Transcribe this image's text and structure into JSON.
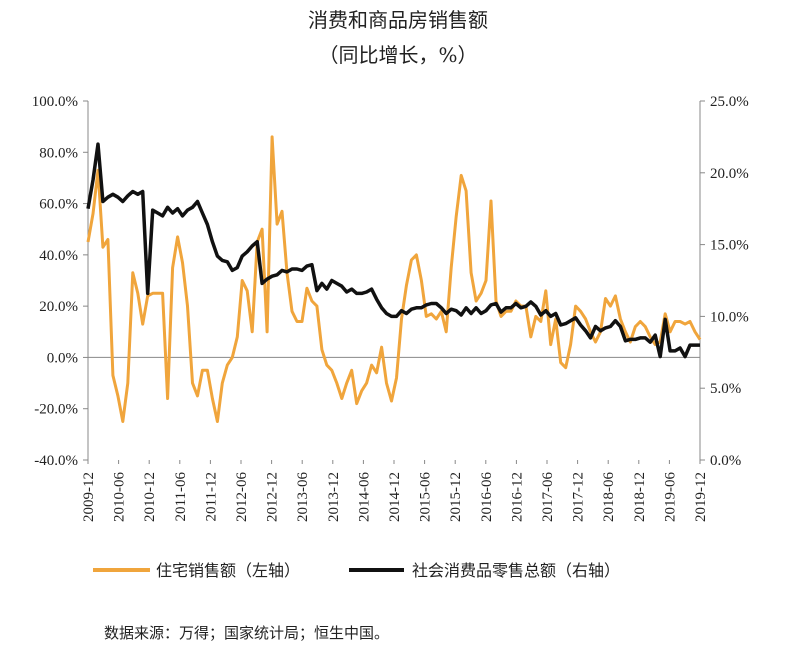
{
  "chart_data": {
    "type": "line",
    "title": "消费和商品房销售额",
    "subtitle": "（同比增长，%）",
    "source": "数据来源：万得；国家统计局；恒生中国。",
    "x_tick_labels": [
      "2009-12",
      "2010-06",
      "2010-12",
      "2011-06",
      "2011-12",
      "2012-06",
      "2012-12",
      "2013-06",
      "2013-12",
      "2014-06",
      "2014-12",
      "2015-06",
      "2015-12",
      "2016-06",
      "2016-12",
      "2017-06",
      "2017-12",
      "2018-06",
      "2018-12",
      "2019-06",
      "2019-12"
    ],
    "y_left": {
      "ticks": [
        "100.0%",
        "80.0%",
        "60.0%",
        "40.0%",
        "20.0%",
        "0.0%",
        "-20.0%",
        "-40.0%"
      ],
      "range": [
        -40,
        100
      ]
    },
    "y_right": {
      "ticks": [
        "25.0%",
        "20.0%",
        "15.0%",
        "10.0%",
        "5.0%",
        "0.0%"
      ],
      "range": [
        0,
        25
      ]
    },
    "grid": false,
    "legend_position": "bottom",
    "series": [
      {
        "name": "住宅销售额（左轴）",
        "axis": "left",
        "color": "#F0A53C",
        "values": [
          45,
          56,
          73,
          43,
          46,
          -7,
          -15,
          -25,
          -10,
          33,
          25,
          13,
          24,
          25,
          25,
          25,
          -16,
          35,
          47,
          37,
          20,
          -10,
          -15,
          -5,
          -5,
          -16,
          -25,
          -10,
          -3,
          0,
          8,
          30,
          26,
          10,
          45,
          50,
          10,
          86,
          52,
          57,
          33,
          18,
          14,
          14,
          27,
          22,
          20,
          3,
          -3,
          -5,
          -10,
          -16,
          -10,
          -5,
          -18,
          -13,
          -10,
          -3,
          -6,
          4,
          -10,
          -17,
          -8,
          15,
          28,
          38,
          40,
          30,
          16,
          17,
          15,
          18,
          10,
          35,
          55,
          71,
          65,
          33,
          22,
          25,
          30,
          61,
          22,
          16,
          18,
          18,
          22,
          20,
          20,
          8,
          16,
          14,
          26,
          5,
          15,
          -2,
          -4,
          5,
          20,
          18,
          15,
          10,
          6,
          10,
          23,
          20,
          24,
          15,
          10,
          6,
          12,
          14,
          12,
          8,
          5,
          6,
          17,
          10,
          14,
          14,
          13,
          14,
          10,
          7
        ]
      },
      {
        "name": "社会消费品零售总额（右轴）",
        "axis": "right",
        "color": "#111111",
        "values": [
          17.5,
          19.5,
          22.0,
          18.0,
          18.3,
          18.5,
          18.3,
          18.0,
          18.4,
          18.7,
          18.5,
          18.7,
          11.6,
          17.4,
          17.2,
          17.0,
          17.6,
          17.2,
          17.5,
          17.0,
          17.4,
          17.6,
          18.0,
          17.2,
          16.4,
          15.2,
          14.2,
          13.9,
          13.8,
          13.2,
          13.4,
          14.2,
          14.5,
          14.9,
          15.2,
          12.3,
          12.6,
          12.8,
          12.9,
          13.2,
          13.1,
          13.3,
          13.3,
          13.2,
          13.5,
          13.6,
          11.8,
          12.3,
          11.9,
          12.5,
          12.3,
          12.1,
          11.7,
          11.9,
          11.6,
          11.6,
          11.7,
          11.9,
          11.2,
          10.6,
          10.2,
          10.0,
          10.0,
          10.4,
          10.2,
          10.5,
          10.6,
          10.6,
          10.8,
          10.9,
          10.9,
          10.6,
          10.2,
          10.5,
          10.4,
          10.1,
          10.6,
          10.2,
          10.6,
          10.2,
          10.4,
          10.8,
          10.9,
          10.3,
          10.6,
          10.6,
          10.9,
          10.6,
          10.7,
          11.0,
          10.7,
          10.1,
          10.4,
          10.0,
          10.2,
          9.4,
          9.5,
          9.7,
          9.9,
          9.4,
          9.0,
          8.5,
          9.3,
          9.0,
          9.2,
          9.3,
          9.7,
          9.3,
          8.3,
          8.4,
          8.4,
          8.5,
          8.5,
          8.2,
          8.7,
          7.2,
          9.8,
          7.6,
          7.6,
          7.8,
          7.2,
          8.0,
          8.0,
          8.0
        ]
      }
    ]
  }
}
